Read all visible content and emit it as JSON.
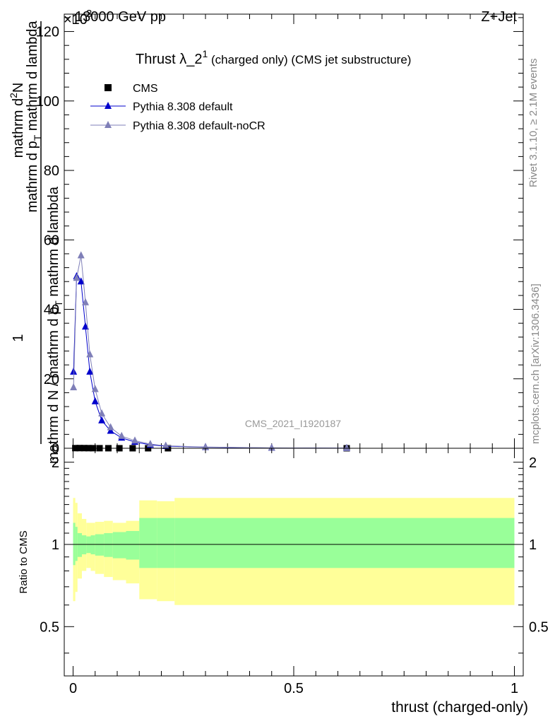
{
  "header": {
    "energy_label": "13000 GeV pp",
    "process_label": "Z+Jet",
    "exponent_label": "×10",
    "exponent_sup": "3"
  },
  "title": {
    "main": "Thrust λ_2",
    "sup": "1",
    "sub": " (charged only) (CMS jet substructure)"
  },
  "side_labels": {
    "rivet": "Rivet 3.1.10, ≥ 2.1M events",
    "mcplots": "mcplots.cern.ch [arXiv:1306.3436]"
  },
  "watermark": "CMS_2021_I1920187",
  "colors": {
    "cms": "#000000",
    "pythia_default": "#0000cc",
    "pythia_nocr": "#7f7fb8",
    "band_outer": "#ffff99",
    "band_inner": "#99ff99"
  },
  "chart_data": [
    {
      "type": "scatter",
      "panel": "main",
      "ylabel_numerator": "1",
      "ylabel_denominator": "mathrm d N / mathrm d p_T mathrm d lambda",
      "ylabel_line1": "mathrm d",
      "ylabel_line1_sup": "2",
      "ylabel_line1_end": "N",
      "ylabel_line2": "mathrm d p",
      "ylabel_line2_sub": "T",
      "ylabel_line2_end": " mathrm d lambda",
      "ylabel_full_denominator": "mathrm d N / mathrm d p",
      "ylabel_full_denominator_sub": "T",
      "ylabel_full_denominator_end": " mathrm d lambda",
      "xlim": [
        -0.02,
        1.02
      ],
      "ylim": [
        0,
        125
      ],
      "yticks": [
        0,
        20,
        40,
        60,
        80,
        100,
        120
      ],
      "ytick_labels": [
        "0",
        "20",
        "40",
        "60",
        "80",
        "100",
        "120"
      ],
      "series": [
        {
          "name": "CMS",
          "marker": "square",
          "x": [
            0.005,
            0.015,
            0.025,
            0.035,
            0.045,
            0.06,
            0.08,
            0.105,
            0.135,
            0.17,
            0.215,
            0.62
          ],
          "y": [
            0.04,
            0.05,
            0.045,
            0.035,
            0.025,
            0.018,
            0.012,
            0.008,
            0.005,
            0.003,
            0.001,
            0.0002
          ]
        },
        {
          "name": "Pythia 8.308 default",
          "marker": "triangle",
          "x": [
            0.001,
            0.008,
            0.018,
            0.028,
            0.038,
            0.05,
            0.065,
            0.085,
            0.11,
            0.14,
            0.175,
            0.21,
            0.3,
            0.45,
            0.62
          ],
          "y": [
            22,
            49.5,
            48,
            35,
            22,
            13.5,
            8,
            5,
            3,
            1.8,
            1.0,
            0.6,
            0.3,
            0.1,
            0.02
          ]
        },
        {
          "name": "Pythia 8.308 default-noCR",
          "marker": "triangle",
          "x": [
            0.001,
            0.008,
            0.018,
            0.028,
            0.038,
            0.05,
            0.065,
            0.085,
            0.11,
            0.14,
            0.175,
            0.21,
            0.3,
            0.45,
            0.62
          ],
          "y": [
            17.5,
            49,
            55.5,
            42,
            27,
            17,
            10,
            6,
            3.5,
            2.2,
            1.2,
            0.7,
            0.35,
            0.12,
            0.02
          ]
        }
      ]
    },
    {
      "type": "area",
      "panel": "ratio",
      "ylabel": "Ratio to CMS",
      "xlabel": "thrust (charged-only)",
      "xlim": [
        -0.02,
        1.02
      ],
      "ylim": [
        0.33,
        2.25
      ],
      "yticks": [
        0.5,
        1,
        2
      ],
      "ytick_labels": [
        "0.5",
        "1",
        "2"
      ],
      "xticks": [
        0,
        0.5,
        1
      ],
      "xtick_labels": [
        "0",
        "0.5",
        "1"
      ],
      "bins": [
        0,
        0.005,
        0.01,
        0.02,
        0.03,
        0.04,
        0.05,
        0.07,
        0.09,
        0.12,
        0.15,
        0.19,
        0.23,
        1.0
      ],
      "band_outer_low": [
        0.62,
        0.67,
        0.75,
        0.8,
        0.82,
        0.8,
        0.78,
        0.76,
        0.74,
        0.72,
        0.63,
        0.62,
        0.6
      ],
      "band_outer_high": [
        1.48,
        1.42,
        1.3,
        1.24,
        1.2,
        1.2,
        1.21,
        1.22,
        1.2,
        1.22,
        1.45,
        1.44,
        1.48
      ],
      "band_inner_low": [
        0.84,
        0.87,
        0.9,
        0.92,
        0.93,
        0.92,
        0.91,
        0.9,
        0.89,
        0.88,
        0.82,
        0.82,
        0.82
      ],
      "band_inner_high": [
        1.2,
        1.16,
        1.1,
        1.08,
        1.07,
        1.08,
        1.09,
        1.1,
        1.11,
        1.12,
        1.25,
        1.25,
        1.25
      ]
    }
  ]
}
